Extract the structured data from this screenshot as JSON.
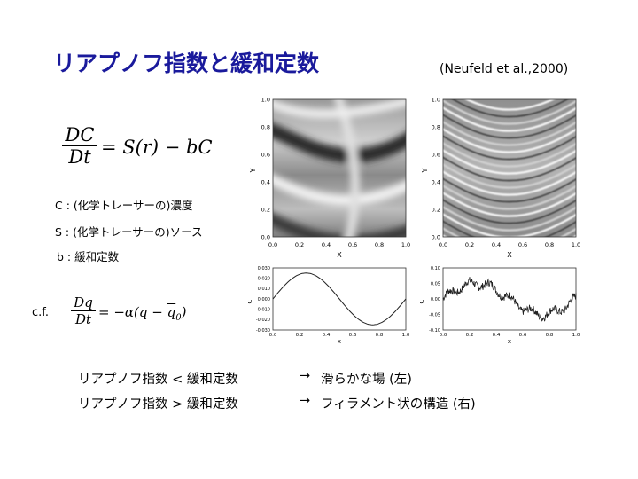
{
  "slide": {
    "title": "リアプノフ指数と緩和定数",
    "citation": "(Neufeld et al.,2000)"
  },
  "equation1": {
    "numerator": "DC",
    "denominator": "Dt",
    "rhs": "= S(r) − bC"
  },
  "definitions": [
    "C : (化学トレーサーの)濃度",
    "S : (化学トレーサーの)ソース",
    "b : 緩和定数"
  ],
  "cf": {
    "label": "c.f.",
    "numerator": "Dq",
    "denominator": "Dt",
    "rhs_prefix": "= −α(q − ",
    "qbar": "q",
    "subscript": "0",
    "rhs_suffix": ")"
  },
  "comparisons": [
    {
      "left": "リアプノフ指数 < 緩和定数",
      "arrow": "→",
      "right": "滑らかな場 (左)"
    },
    {
      "left": "リアプノフ指数 > 緩和定数",
      "arrow": "→",
      "right": "フィラメント状の構造 (右)"
    }
  ],
  "figures": {
    "field_x_label": "X",
    "field_y_label": "Y",
    "field_x_ticks": [
      "0.0",
      "0.2",
      "0.4",
      "0.6",
      "0.8",
      "1.0"
    ],
    "field_y_ticks": [
      "0.0",
      "0.2",
      "0.4",
      "0.6",
      "0.8",
      "1.0"
    ],
    "section_x_label": "x",
    "section_y_label": "C",
    "section_x_ticks": [
      "0.0",
      "0.2",
      "0.4",
      "0.6",
      "0.8",
      "1.0"
    ],
    "left_section_y_ticks": [
      "0.030",
      "0.020",
      "0.010",
      "0.000",
      "-0.010",
      "-0.020",
      "-0.030"
    ],
    "right_section_y_ticks": [
      "0.10",
      "0.05",
      "0.00",
      "-0.05",
      "-0.10"
    ]
  }
}
